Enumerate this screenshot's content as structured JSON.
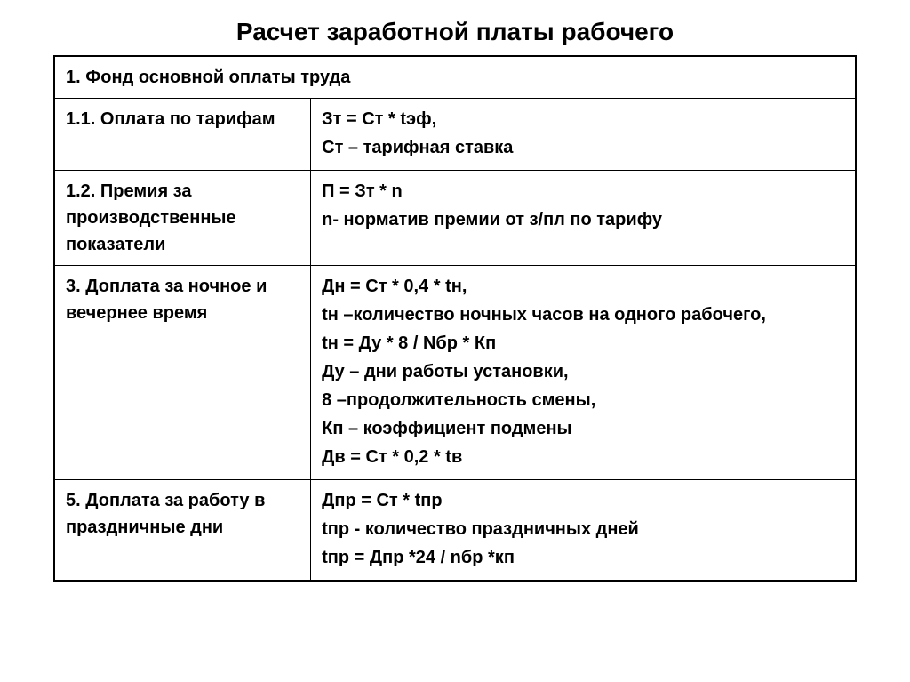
{
  "title": "Расчет заработной платы рабочего",
  "table": {
    "header_row": "1. Фонд основной оплаты труда",
    "rows": [
      {
        "left": "1.1. Оплата по тарифам",
        "right_lines": [
          "Зт = Ст * tэф,",
          "Ст – тарифная ставка"
        ]
      },
      {
        "left": "1.2. Премия за производственные показатели",
        "right_lines": [
          "П = Зт * n",
          "n- норматив премии от з/пл по тарифу"
        ]
      },
      {
        "left": "3. Доплата за ночное и вечернее время",
        "right_lines": [
          "Дн = Ст * 0,4 * tн,",
          "tн –количество ночных часов на одного рабочего,",
          "tн = Ду * 8 / Nбр * Кп",
          "Ду – дни работы установки,",
          "8 –продолжительность смены,",
          "Кп – коэффициент подмены",
          "Дв = Ст * 0,2 * tв"
        ]
      },
      {
        "left": "5. Доплата за работу в праздничные дни",
        "right_lines": [
          "Дпр = Ст * tпр",
          "tпр - количество праздничных дней",
          "tпр = Дпр *24 / nбр *кп"
        ]
      }
    ]
  },
  "styling": {
    "title_fontsize": 28,
    "cell_fontsize": 20,
    "title_color": "#000000",
    "text_color": "#000000",
    "border_color": "#000000",
    "background_color": "#ffffff",
    "font_family": "Arial",
    "font_weight": "bold",
    "left_col_width_pct": 32,
    "right_col_width_pct": 68
  }
}
